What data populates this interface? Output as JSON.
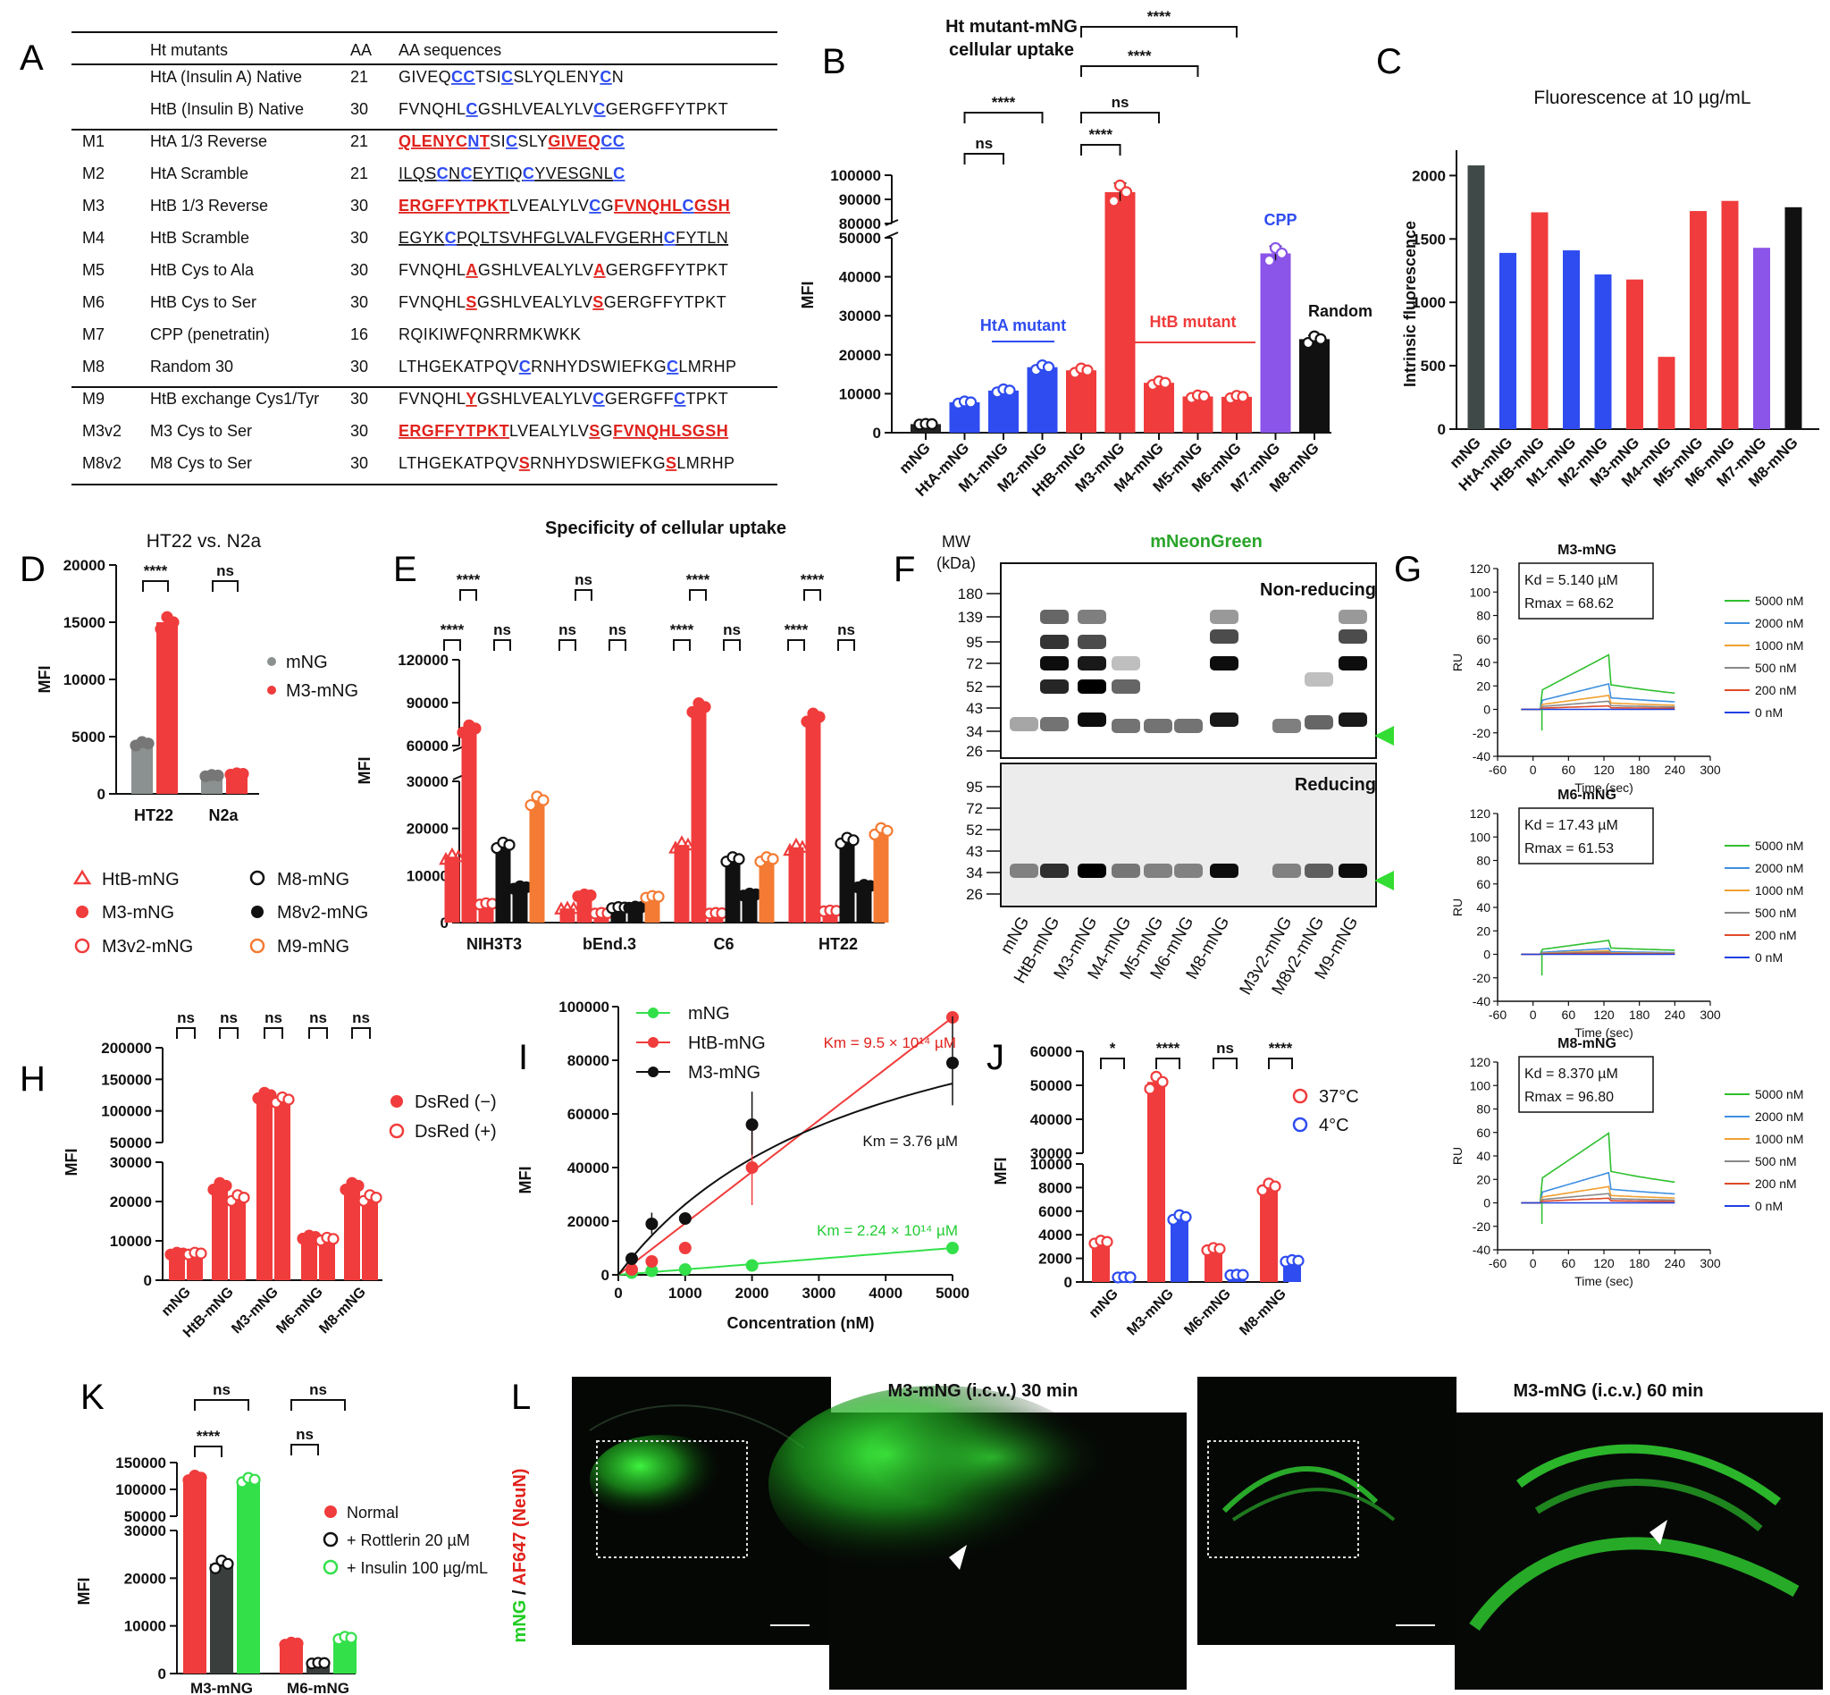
{
  "panels": {
    "A": "A",
    "B": "B",
    "C": "C",
    "D": "D",
    "E": "E",
    "F": "F",
    "G": "G",
    "H": "H",
    "I": "I",
    "J": "J",
    "K": "K",
    "L": "L"
  },
  "panel_a": {
    "headers": [
      "Ht mutants",
      "AA",
      "AA sequences"
    ],
    "rows": [
      {
        "id": "",
        "name": "HtA (Insulin A) Native",
        "aa": "21",
        "seq": "GIVEQCCTSICSLYQLENYCN"
      },
      {
        "id": "",
        "name": "HtB (Insulin B) Native",
        "aa": "30",
        "seq": "FVNQHLCGSHLVEALYLVCGERGFFYTPKT"
      },
      {
        "id": "M1",
        "name": "HtA 1/3 Reverse",
        "aa": "21",
        "seq": "QLENYCNTSICSLYGIVEQCC"
      },
      {
        "id": "M2",
        "name": "HtA Scramble",
        "aa": "21",
        "seq": "ILQSCNCEYTIQCYVESGNLC"
      },
      {
        "id": "M3",
        "name": "HtB 1/3 Reverse",
        "aa": "30",
        "seq": "ERGFFYTPKTLVEALYLVCGFVNQHLCGSH"
      },
      {
        "id": "M4",
        "name": "HtB Scramble",
        "aa": "30",
        "seq": "EGYKCPQLTSVHFGLVALFVGERHCFYTLN"
      },
      {
        "id": "M5",
        "name": "HtB Cys to Ala",
        "aa": "30",
        "seq": "FVNQHLAGSHLVEALYLVAGERGFFYTPKT"
      },
      {
        "id": "M6",
        "name": "HtB Cys to Ser",
        "aa": "30",
        "seq": "FVNQHLSGSHLVEALYLVSGERGFFYTPKT"
      },
      {
        "id": "M7",
        "name": "CPP (penetratin)",
        "aa": "16",
        "seq": "RQIKIWFQNRRMKWKK"
      },
      {
        "id": "M8",
        "name": "Random 30",
        "aa": "30",
        "seq": "LTHGEKATPQVCRNHYDSWIEFKGCLMRHP"
      },
      {
        "id": "M9",
        "name": "HtB exchange Cys1/Tyr",
        "aa": "30",
        "seq": "FVNQHLYGSHLVEALYLVCGERGFFCTPKT"
      },
      {
        "id": "M3v2",
        "name": "M3 Cys to Ser",
        "aa": "30",
        "seq": "ERGFFYTPKTLVEALYLVSGFVNQHLSGSH"
      },
      {
        "id": "M8v2",
        "name": "M8 Cys to Ser",
        "aa": "30",
        "seq": "LTHGEKATPQVSRNHYDSWIEFKGSLMRHP"
      }
    ]
  },
  "panel_b": {
    "title_line1": "Ht mutant-mNG",
    "title_line2": "cellular uptake",
    "ylabel": "MFI",
    "labels": {
      "hta": "HtA mutant",
      "htb": "HtB mutant",
      "cpp": "CPP",
      "random": "Random"
    },
    "sig": [
      "ns",
      "****",
      "****",
      "ns",
      "****",
      "****",
      "****"
    ]
  },
  "panel_c": {
    "title": "Fluorescence at 10 µg/mL",
    "ylabel": "Intrinsic fluorescence"
  },
  "panel_d": {
    "title": "HT22 vs. N2a",
    "ylabel": "MFI",
    "legend": [
      "mNG",
      "M3-mNG"
    ],
    "sig": [
      "****",
      "ns"
    ]
  },
  "panel_e": {
    "title": "Specificity of cellular uptake",
    "ylabel": "MFI",
    "legend": [
      "HtB-mNG",
      "M3-mNG",
      "M3v2-mNG",
      "M8-mNG",
      "M8v2-mNG",
      "M9-mNG"
    ],
    "sig_top": [
      "****",
      "ns",
      "****",
      "****"
    ],
    "sig_low": [
      "****",
      "ns",
      "ns",
      "ns",
      "****",
      "ns",
      "****",
      "ns"
    ]
  },
  "panel_f": {
    "title": "mNeonGreen",
    "mw": "MW",
    "kda": "(kDa)",
    "nonreducing": "Non-reducing",
    "reducing": "Reducing",
    "ladder_top": [
      "180",
      "139",
      "95",
      "72",
      "52",
      "43",
      "34",
      "26"
    ],
    "ladder_bottom": [
      "95",
      "72",
      "52",
      "43",
      "34",
      "26"
    ],
    "lanes": [
      "mNG",
      "HtB-mNG",
      "M3-mNG",
      "M4-mNG",
      "M5-mNG",
      "M6-mNG",
      "M8-mNG",
      "M3v2-mNG",
      "M8v2-mNG",
      "M9-mNG"
    ]
  },
  "panel_g": {
    "ylabel": "RU",
    "xlabel": "Time (sec)",
    "legend": [
      "5000 nM",
      "2000 nM",
      "1000 nM",
      "500 nM",
      "200 nM",
      "0 nM"
    ],
    "plots": [
      {
        "name": "M3-mNG",
        "kd": "Kd = 5.140 µM",
        "rmax": "Rmax = 68.62"
      },
      {
        "name": "M6-mNG",
        "kd": "Kd = 17.43 µM",
        "rmax": "Rmax = 61.53"
      },
      {
        "name": "M8-mNG",
        "kd": "Kd = 8.370 µM",
        "rmax": "Rmax = 96.80"
      }
    ]
  },
  "panel_h": {
    "ylabel": "MFI",
    "legend": [
      "DsRed (−)",
      "DsRed (+)"
    ],
    "sig": [
      "ns",
      "ns",
      "ns",
      "ns",
      "ns"
    ]
  },
  "panel_i": {
    "ylabel": "MFI",
    "xlabel": "Concentration (nM)",
    "legend": [
      "mNG",
      "HtB-mNG",
      "M3-mNG"
    ],
    "km": [
      "Km = 9.5 × 10¹⁴ µM",
      "Km = 3.76 µM",
      "Km = 2.24 × 10¹⁴ µM"
    ]
  },
  "panel_j": {
    "ylabel": "MFI",
    "legend": [
      "37°C",
      "4°C"
    ],
    "sig": [
      "*",
      "****",
      "ns",
      "****"
    ]
  },
  "panel_k": {
    "ylabel": "MFI",
    "legend": [
      "Normal",
      "+ Rottlerin 20 µM",
      "+ Insulin 100 µg/mL"
    ],
    "sig": [
      "ns",
      "****",
      "ns",
      "ns"
    ]
  },
  "panel_l": {
    "ylabel_green": "mNG",
    "ylabel_sep": " / ",
    "ylabel_red": "AF647 (NeuN)",
    "title30": "M3-mNG (i.c.v.) 30 min",
    "title60": "M3-mNG (i.c.v.) 60 min"
  },
  "colors": {
    "red": "#f03c3c",
    "blue": "#2f4cf0",
    "gray": "#8a9190",
    "darkgray": "#3f4a48",
    "purple": "#8a55e8",
    "black": "#111111",
    "orange": "#f47b34",
    "green": "#33e04a",
    "seqred": "#e0221c"
  },
  "chart_data": [
    {
      "id": "B",
      "type": "bar",
      "categories": [
        "mNG",
        "HtA-mNG",
        "M1-mNG",
        "M2-mNG",
        "HtB-mNG",
        "M3-mNG",
        "M4-mNG",
        "M5-mNG",
        "M6-mNG",
        "M7-mNG",
        "M8-mNG"
      ],
      "values": [
        2200,
        7800,
        10800,
        16800,
        16000,
        93000,
        12800,
        9300,
        9200,
        46000,
        24000
      ],
      "colors": [
        "#222222",
        "#2f4cf0",
        "#2f4cf0",
        "#2f4cf0",
        "#f03c3c",
        "#f03c3c",
        "#f03c3c",
        "#f03c3c",
        "#f03c3c",
        "#8a55e8",
        "#111111"
      ],
      "ylim": [
        0,
        100000
      ],
      "yticks": [
        0,
        10000,
        20000,
        30000,
        40000,
        50000,
        80000,
        90000,
        100000
      ],
      "ylabel": "MFI"
    },
    {
      "id": "C",
      "type": "bar",
      "categories": [
        "mNG",
        "HtA-mNG",
        "HtB-mNG",
        "M1-mNG",
        "M2-mNG",
        "M3-mNG",
        "M4-mNG",
        "M5-mNG",
        "M6-mNG",
        "M7-mNG",
        "M8-mNG"
      ],
      "values": [
        2080,
        1390,
        1710,
        1410,
        1220,
        1180,
        570,
        1720,
        1800,
        1430,
        1750
      ],
      "colors": [
        "#3f4a48",
        "#2f4cf0",
        "#f03c3c",
        "#2f4cf0",
        "#2f4cf0",
        "#f03c3c",
        "#f03c3c",
        "#f03c3c",
        "#f03c3c",
        "#8a55e8",
        "#111111"
      ],
      "ylim": [
        0,
        2200
      ],
      "yticks": [
        0,
        500,
        1000,
        1500,
        2000
      ],
      "ylabel": "Intrinsic fluorescence",
      "title": "Fluorescence at 10 µg/mL"
    },
    {
      "id": "D",
      "type": "bar",
      "categories": [
        "HT22",
        "N2a"
      ],
      "series": [
        {
          "name": "mNG",
          "values": [
            4400,
            1600
          ]
        },
        {
          "name": "M3-mNG",
          "values": [
            15000,
            1750
          ]
        }
      ],
      "ylim": [
        0,
        20000
      ],
      "yticks": [
        0,
        5000,
        10000,
        15000,
        20000
      ],
      "ylabel": "MFI",
      "title": "HT22 vs. N2a"
    },
    {
      "id": "E",
      "type": "bar",
      "categories": [
        "NIH3T3",
        "bEnd.3",
        "C6",
        "HT22"
      ],
      "series": [
        {
          "name": "HtB-mNG",
          "values": [
            14000,
            3000,
            16500,
            16000
          ]
        },
        {
          "name": "M3-mNG",
          "values": [
            72000,
            5800,
            87000,
            80000
          ]
        },
        {
          "name": "M3v2-mNG",
          "values": [
            4000,
            2000,
            2000,
            2500
          ]
        },
        {
          "name": "M8-mNG",
          "values": [
            16500,
            3200,
            13500,
            17500
          ]
        },
        {
          "name": "M8v2-mNG",
          "values": [
            7500,
            3300,
            6000,
            7800
          ]
        },
        {
          "name": "M9-mNG",
          "values": [
            26000,
            5500,
            13500,
            19500
          ]
        }
      ],
      "ylim": [
        0,
        120000
      ],
      "yticks": [
        0,
        10000,
        20000,
        30000,
        60000,
        90000,
        120000
      ],
      "ylabel": "MFI",
      "title": "Specificity of cellular uptake"
    },
    {
      "id": "G",
      "type": "line",
      "xlabel": "Time (sec)",
      "ylabel": "RU",
      "xlim": [
        -60,
        300
      ],
      "ylim": [
        -40,
        120
      ],
      "series_names": [
        "5000 nM",
        "2000 nM",
        "1000 nM",
        "500 nM",
        "200 nM",
        "0 nM"
      ],
      "peak_levels": {
        "M3-mNG": [
          47,
          22,
          12,
          7,
          3,
          0
        ],
        "M6-mNG": [
          12,
          5,
          3,
          2,
          1,
          0
        ],
        "M8-mNG": [
          60,
          26,
          14,
          8,
          4,
          0
        ]
      }
    },
    {
      "id": "H",
      "type": "bar",
      "categories": [
        "mNG",
        "HtB-mNG",
        "M3-mNG",
        "M6-mNG",
        "M8-mNG"
      ],
      "series": [
        {
          "name": "DsRed (−)",
          "values": [
            6800,
            24000,
            125000,
            11000,
            24000
          ]
        },
        {
          "name": "DsRed (+)",
          "values": [
            6800,
            21000,
            118000,
            10500,
            21000
          ]
        }
      ],
      "ylim": [
        0,
        200000
      ],
      "yticks": [
        0,
        10000,
        20000,
        30000,
        50000,
        100000,
        150000,
        200000
      ],
      "ylabel": "MFI"
    },
    {
      "id": "I",
      "type": "scatter",
      "xlabel": "Concentration (nM)",
      "ylabel": "MFI",
      "xlim": [
        0,
        5000
      ],
      "ylim": [
        0,
        100000
      ],
      "series": [
        {
          "name": "mNG",
          "x": [
            200,
            500,
            1000,
            2000,
            5000
          ],
          "y": [
            800,
            1500,
            2000,
            3500,
            10000
          ]
        },
        {
          "name": "HtB-mNG",
          "x": [
            200,
            500,
            1000,
            2000,
            5000
          ],
          "y": [
            2000,
            5000,
            10000,
            40000,
            96000
          ]
        },
        {
          "name": "M3-mNG",
          "x": [
            200,
            500,
            1000,
            2000,
            5000
          ],
          "y": [
            6000,
            19000,
            21000,
            56000,
            79000
          ]
        }
      ]
    },
    {
      "id": "J",
      "type": "bar",
      "categories": [
        "mNG",
        "M3-mNG",
        "M6-mNG",
        "M8-mNG"
      ],
      "series": [
        {
          "name": "37°C",
          "values": [
            3400,
            51000,
            2800,
            8100
          ]
        },
        {
          "name": "4°C",
          "values": [
            400,
            5500,
            600,
            1800
          ]
        }
      ],
      "ylim": [
        0,
        60000
      ],
      "yticks": [
        0,
        2000,
        4000,
        6000,
        8000,
        10000,
        30000,
        40000,
        50000,
        60000
      ],
      "ylabel": "MFI"
    },
    {
      "id": "K",
      "type": "bar",
      "categories": [
        "M3-mNG",
        "M6-mNG"
      ],
      "series": [
        {
          "name": "Normal",
          "values": [
            122000,
            6300
          ]
        },
        {
          "name": "+ Rottlerin 20 µM",
          "values": [
            23000,
            2200
          ]
        },
        {
          "name": "+ Insulin 100 µg/mL",
          "values": [
            118000,
            7500
          ]
        }
      ],
      "ylim": [
        0,
        150000
      ],
      "yticks": [
        0,
        10000,
        20000,
        30000,
        50000,
        100000,
        150000
      ],
      "ylabel": "MFI"
    }
  ]
}
